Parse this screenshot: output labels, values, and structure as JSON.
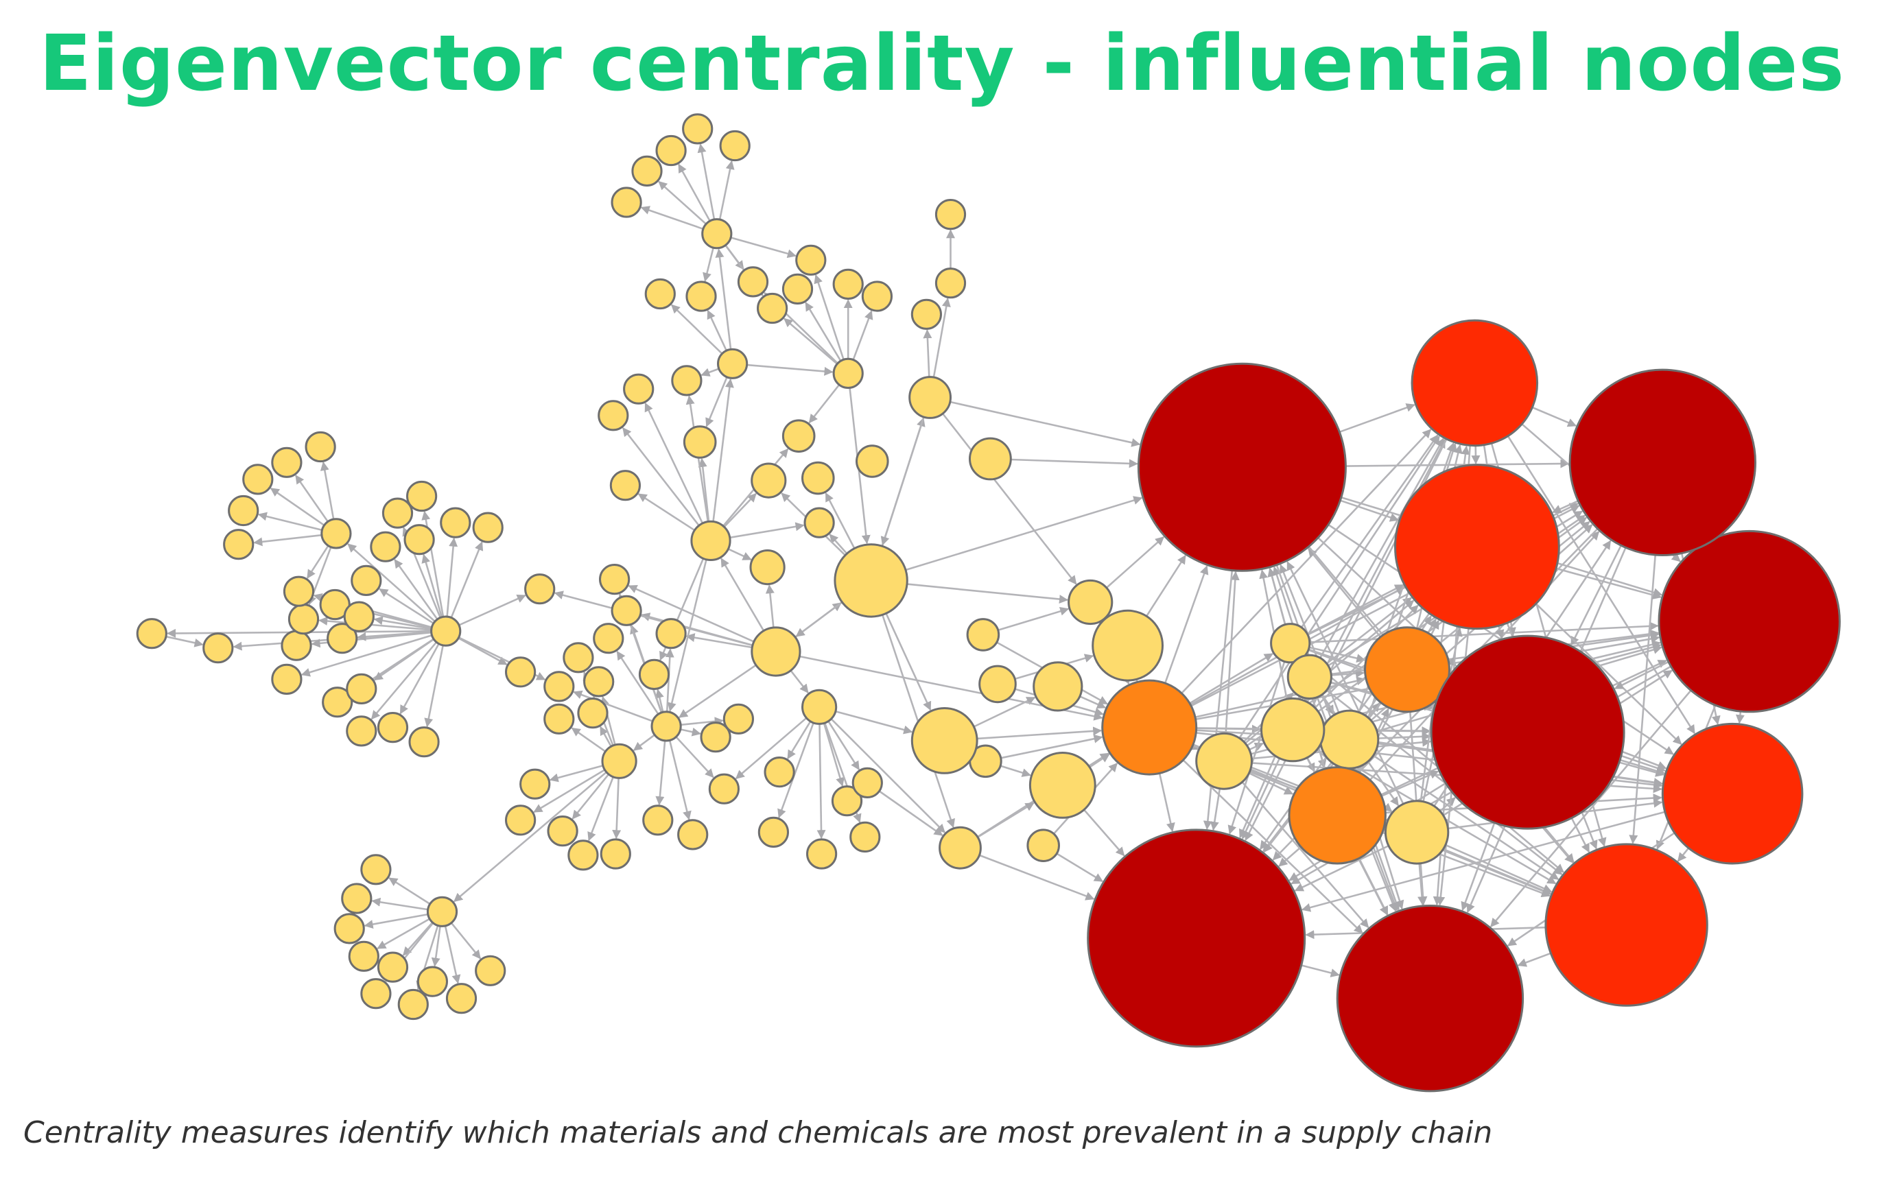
{
  "title": "Eigenvector centrality - influential nodes",
  "caption": "Centrality measures identify which materials and chemicals are most prevalent in a supply chain",
  "colors": {
    "title": "#16c87a",
    "low_centrality": "#fddb6d",
    "medium_centrality": "#fe8415",
    "high_centrality": "#fe2a02",
    "highest_centrality": "#bd0000",
    "edge": "#b4b4b8"
  },
  "graph": {
    "directed": true,
    "levels": [
      "low_centrality",
      "medium_centrality",
      "high_centrality",
      "highest_centrality"
    ]
  }
}
